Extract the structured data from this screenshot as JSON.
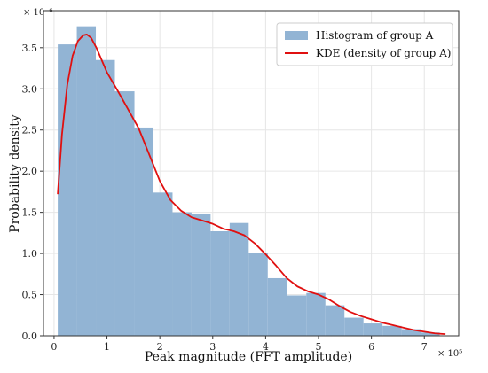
{
  "chart_data": {
    "type": "bar",
    "xlabel": "Peak magnitude (FFT amplitude)",
    "ylabel": "Probability density",
    "x_multiplier_label": "× 10⁵",
    "y_multiplier_label": "× 10⁻⁶",
    "xlim": [
      -0.2,
      7.65
    ],
    "ylim": [
      0,
      3.95
    ],
    "x_ticks": [
      0,
      1,
      2,
      3,
      4,
      5,
      6,
      7
    ],
    "y_ticks": [
      0.0,
      0.5,
      1.0,
      1.5,
      2.0,
      2.5,
      3.0,
      3.5
    ],
    "x_tick_labels": [
      "0",
      "1",
      "2",
      "3",
      "4",
      "5",
      "6",
      "7"
    ],
    "y_tick_labels": [
      "0.0",
      "0.5",
      "1.0",
      "1.5",
      "2.0",
      "2.5",
      "3.0",
      "3.5"
    ],
    "grid": true,
    "legend_position": "top-right",
    "histogram": {
      "name": "Histogram of group A",
      "color": "#92b4d4",
      "bin_edges": [
        0.07,
        0.43,
        0.79,
        1.15,
        1.52,
        1.88,
        2.24,
        2.6,
        2.96,
        3.32,
        3.68,
        4.04,
        4.41,
        4.77,
        5.13,
        5.49,
        5.85,
        6.21,
        6.57,
        6.93,
        7.29
      ],
      "values": [
        3.54,
        3.76,
        3.35,
        2.97,
        2.53,
        1.74,
        1.5,
        1.48,
        1.27,
        1.37,
        1.01,
        0.7,
        0.49,
        0.52,
        0.37,
        0.22,
        0.15,
        0.12,
        0.08,
        0.04
      ]
    },
    "kde": {
      "name": "KDE (density of group A)",
      "color": "#e01010",
      "x": [
        0.07,
        0.15,
        0.25,
        0.35,
        0.45,
        0.55,
        0.62,
        0.7,
        0.8,
        0.9,
        1.0,
        1.2,
        1.4,
        1.6,
        1.8,
        2.0,
        2.2,
        2.4,
        2.6,
        2.8,
        3.0,
        3.2,
        3.4,
        3.6,
        3.8,
        4.0,
        4.2,
        4.4,
        4.6,
        4.8,
        5.0,
        5.2,
        5.4,
        5.6,
        5.8,
        6.0,
        6.2,
        6.4,
        6.6,
        6.8,
        7.0,
        7.2,
        7.4
      ],
      "y": [
        1.72,
        2.45,
        3.05,
        3.4,
        3.58,
        3.65,
        3.66,
        3.62,
        3.5,
        3.35,
        3.2,
        2.98,
        2.75,
        2.52,
        2.2,
        1.88,
        1.65,
        1.52,
        1.44,
        1.4,
        1.36,
        1.3,
        1.27,
        1.22,
        1.12,
        0.99,
        0.85,
        0.7,
        0.6,
        0.54,
        0.5,
        0.44,
        0.36,
        0.29,
        0.24,
        0.2,
        0.16,
        0.13,
        0.1,
        0.07,
        0.05,
        0.03,
        0.02
      ]
    }
  }
}
